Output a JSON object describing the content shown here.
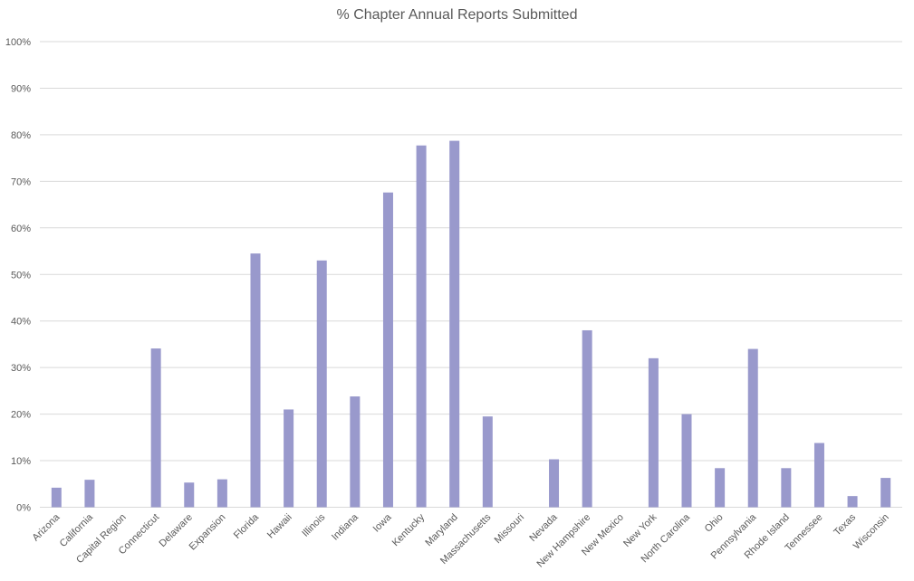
{
  "chart_data": {
    "type": "bar",
    "title": "% Chapter Annual Reports Submitted",
    "xlabel": "",
    "ylabel": "",
    "ylim": [
      0,
      100
    ],
    "y_ticks": [
      "0%",
      "10%",
      "20%",
      "30%",
      "40%",
      "50%",
      "60%",
      "70%",
      "80%",
      "90%",
      "100%"
    ],
    "y_tick_values": [
      0,
      10,
      20,
      30,
      40,
      50,
      60,
      70,
      80,
      90,
      100
    ],
    "grid": true,
    "legend": "none",
    "bar_color": "#9999cc",
    "categories": [
      "Arizona",
      "California",
      "Capital Region",
      "Connecticut",
      "Delaware",
      "Expansion",
      "Florida",
      "Hawaii",
      "Illinois",
      "Indiana",
      "Iowa",
      "Kentucky",
      "Maryland",
      "Massachusetts",
      "Missouri",
      "Nevada",
      "New Hampshire",
      "New Mexico",
      "New York",
      "North Carolina",
      "Ohio",
      "Pennsylvania",
      "Rhode Island",
      "Tennessee",
      "Texas",
      "Wisconsin"
    ],
    "values": [
      4.2,
      5.9,
      0,
      34.1,
      5.3,
      6.0,
      54.5,
      21.0,
      53.0,
      23.8,
      67.6,
      77.7,
      78.7,
      19.5,
      0,
      10.3,
      38.0,
      0,
      32.0,
      20.0,
      8.4,
      34.0,
      8.4,
      13.8,
      2.4,
      6.3
    ]
  }
}
